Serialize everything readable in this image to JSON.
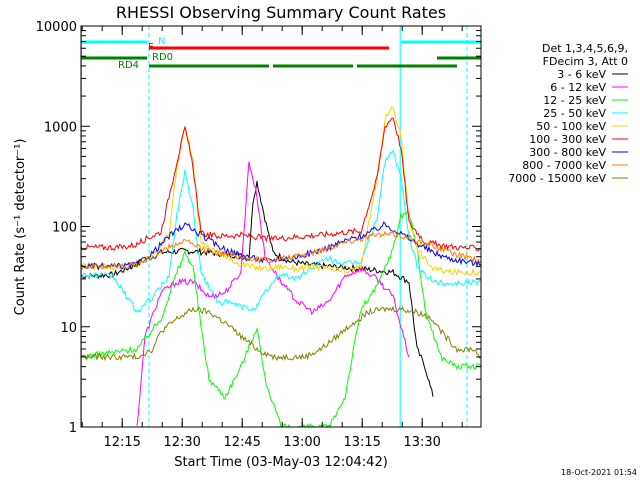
{
  "chart_data": {
    "type": "line",
    "title": "RHESSI Observing Summary Count Rates",
    "xlabel": "Start Time (03-May-03 12:04:42)",
    "ylabel": "Count Rate (s⁻¹ detector⁻¹)",
    "yscale": "log",
    "ylim": [
      1,
      10000
    ],
    "xlim": [
      0,
      100
    ],
    "x_ticks": [
      {
        "x": 10.3,
        "label": "12:15"
      },
      {
        "x": 25.3,
        "label": "12:30"
      },
      {
        "x": 40.3,
        "label": "12:45"
      },
      {
        "x": 55.3,
        "label": "13:00"
      },
      {
        "x": 70.3,
        "label": "13:15"
      },
      {
        "x": 85.3,
        "label": "13:30"
      }
    ],
    "y_ticks": [
      {
        "y": 1,
        "label": "1"
      },
      {
        "y": 10,
        "label": "10"
      },
      {
        "y": 100,
        "label": "100"
      },
      {
        "y": 1000,
        "label": "1000"
      },
      {
        "y": 10000,
        "label": "10000"
      }
    ],
    "legend_header": [
      "Det 1,3,4,5,6,9,",
      "FDecim 3, Att 0"
    ],
    "series": [
      {
        "name": "3 - 6 keV",
        "color": "#000000",
        "points": [
          [
            0,
            32
          ],
          [
            8,
            33
          ],
          [
            14,
            42
          ],
          [
            20,
            55
          ],
          [
            26,
            57
          ],
          [
            32,
            55
          ],
          [
            38,
            52
          ],
          [
            42,
            48
          ],
          [
            43,
            180
          ],
          [
            44,
            280
          ],
          [
            46,
            120
          ],
          [
            48,
            55
          ],
          [
            52,
            45
          ],
          [
            56,
            42
          ],
          [
            62,
            40
          ],
          [
            70,
            38
          ],
          [
            78,
            35
          ],
          [
            82,
            28
          ],
          [
            84,
            6
          ],
          [
            86,
            4
          ],
          [
            88,
            2
          ]
        ]
      },
      {
        "name": "6 - 12 keV",
        "color": "#ff00ff",
        "points": [
          [
            14,
            1
          ],
          [
            16,
            8
          ],
          [
            20,
            22
          ],
          [
            24,
            28
          ],
          [
            28,
            28
          ],
          [
            32,
            20
          ],
          [
            36,
            22
          ],
          [
            40,
            35
          ],
          [
            42,
            450
          ],
          [
            44,
            200
          ],
          [
            46,
            50
          ],
          [
            50,
            28
          ],
          [
            54,
            18
          ],
          [
            58,
            14
          ],
          [
            62,
            18
          ],
          [
            66,
            32
          ],
          [
            70,
            38
          ],
          [
            74,
            30
          ],
          [
            78,
            20
          ],
          [
            80,
            10
          ],
          [
            82,
            5
          ]
        ]
      },
      {
        "name": "12 - 25 keV",
        "color": "#00ff00",
        "points": [
          [
            0,
            5
          ],
          [
            14,
            6
          ],
          [
            20,
            12
          ],
          [
            24,
            35
          ],
          [
            26,
            55
          ],
          [
            28,
            40
          ],
          [
            30,
            10
          ],
          [
            32,
            3
          ],
          [
            36,
            2
          ],
          [
            40,
            4
          ],
          [
            44,
            10
          ],
          [
            46,
            3
          ],
          [
            50,
            1
          ],
          [
            54,
            1
          ],
          [
            58,
            1
          ],
          [
            62,
            1
          ],
          [
            66,
            2
          ],
          [
            70,
            15
          ],
          [
            74,
            25
          ],
          [
            78,
            60
          ],
          [
            80,
            130
          ],
          [
            82,
            140
          ],
          [
            84,
            60
          ],
          [
            86,
            15
          ],
          [
            90,
            5
          ],
          [
            94,
            4
          ],
          [
            100,
            4
          ]
        ]
      },
      {
        "name": "25 - 50 keV",
        "color": "#00ffff",
        "points": [
          [
            0,
            33
          ],
          [
            8,
            32
          ],
          [
            14,
            14
          ],
          [
            18,
            20
          ],
          [
            22,
            32
          ],
          [
            24,
            130
          ],
          [
            26,
            360
          ],
          [
            28,
            150
          ],
          [
            30,
            35
          ],
          [
            34,
            18
          ],
          [
            38,
            17
          ],
          [
            42,
            15
          ],
          [
            44,
            16
          ],
          [
            46,
            22
          ],
          [
            50,
            34
          ],
          [
            54,
            30
          ],
          [
            58,
            40
          ],
          [
            62,
            48
          ],
          [
            66,
            42
          ],
          [
            70,
            45
          ],
          [
            74,
            120
          ],
          [
            76,
            450
          ],
          [
            78,
            570
          ],
          [
            80,
            300
          ],
          [
            82,
            80
          ],
          [
            84,
            40
          ],
          [
            88,
            28
          ],
          [
            92,
            27
          ],
          [
            100,
            28
          ]
        ]
      },
      {
        "name": "50 - 100 keV",
        "color": "#ffd000",
        "points": [
          [
            0,
            40
          ],
          [
            8,
            40
          ],
          [
            14,
            42
          ],
          [
            18,
            52
          ],
          [
            22,
            85
          ],
          [
            24,
            400
          ],
          [
            26,
            980
          ],
          [
            28,
            450
          ],
          [
            30,
            70
          ],
          [
            34,
            55
          ],
          [
            38,
            45
          ],
          [
            42,
            40
          ],
          [
            46,
            38
          ],
          [
            50,
            40
          ],
          [
            54,
            38
          ],
          [
            58,
            40
          ],
          [
            62,
            38
          ],
          [
            66,
            35
          ],
          [
            70,
            40
          ],
          [
            74,
            300
          ],
          [
            76,
            1200
          ],
          [
            78,
            1550
          ],
          [
            80,
            800
          ],
          [
            82,
            120
          ],
          [
            84,
            60
          ],
          [
            88,
            38
          ],
          [
            92,
            35
          ],
          [
            100,
            35
          ]
        ]
      },
      {
        "name": "100 - 300 keV",
        "color": "#ff0000",
        "points": [
          [
            0,
            62
          ],
          [
            10,
            62
          ],
          [
            14,
            66
          ],
          [
            16,
            75
          ],
          [
            20,
            88
          ],
          [
            24,
            450
          ],
          [
            26,
            950
          ],
          [
            28,
            400
          ],
          [
            30,
            85
          ],
          [
            34,
            80
          ],
          [
            40,
            82
          ],
          [
            44,
            78
          ],
          [
            48,
            75
          ],
          [
            52,
            78
          ],
          [
            56,
            80
          ],
          [
            62,
            84
          ],
          [
            66,
            88
          ],
          [
            70,
            90
          ],
          [
            74,
            300
          ],
          [
            76,
            1000
          ],
          [
            78,
            1250
          ],
          [
            80,
            600
          ],
          [
            82,
            110
          ],
          [
            86,
            70
          ],
          [
            90,
            65
          ],
          [
            94,
            62
          ],
          [
            100,
            60
          ]
        ]
      },
      {
        "name": "300 - 800 keV",
        "color": "#0000ff",
        "points": [
          [
            0,
            40
          ],
          [
            10,
            40
          ],
          [
            14,
            42
          ],
          [
            18,
            55
          ],
          [
            22,
            80
          ],
          [
            26,
            105
          ],
          [
            30,
            82
          ],
          [
            34,
            65
          ],
          [
            38,
            55
          ],
          [
            42,
            50
          ],
          [
            46,
            45
          ],
          [
            50,
            48
          ],
          [
            54,
            50
          ],
          [
            58,
            55
          ],
          [
            62,
            62
          ],
          [
            66,
            72
          ],
          [
            70,
            80
          ],
          [
            74,
            95
          ],
          [
            76,
            105
          ],
          [
            80,
            85
          ],
          [
            84,
            68
          ],
          [
            88,
            55
          ],
          [
            92,
            48
          ],
          [
            100,
            42
          ]
        ]
      },
      {
        "name": "800 - 7000 keV",
        "color": "#ff8000",
        "points": [
          [
            0,
            40
          ],
          [
            10,
            40
          ],
          [
            14,
            42
          ],
          [
            18,
            50
          ],
          [
            22,
            62
          ],
          [
            26,
            72
          ],
          [
            30,
            60
          ],
          [
            34,
            55
          ],
          [
            38,
            52
          ],
          [
            42,
            48
          ],
          [
            46,
            46
          ],
          [
            50,
            48
          ],
          [
            54,
            50
          ],
          [
            58,
            55
          ],
          [
            62,
            62
          ],
          [
            66,
            70
          ],
          [
            70,
            76
          ],
          [
            74,
            82
          ],
          [
            78,
            84
          ],
          [
            82,
            78
          ],
          [
            86,
            68
          ],
          [
            90,
            60
          ],
          [
            94,
            52
          ],
          [
            100,
            45
          ]
        ]
      },
      {
        "name": "7000 - 15000 keV",
        "color": "#808000",
        "points": [
          [
            0,
            5
          ],
          [
            14,
            5
          ],
          [
            18,
            6
          ],
          [
            20,
            9
          ],
          [
            24,
            12
          ],
          [
            28,
            15
          ],
          [
            32,
            14
          ],
          [
            36,
            11
          ],
          [
            40,
            8
          ],
          [
            44,
            6
          ],
          [
            48,
            5
          ],
          [
            52,
            5
          ],
          [
            56,
            5
          ],
          [
            60,
            6
          ],
          [
            64,
            8
          ],
          [
            68,
            11
          ],
          [
            72,
            14
          ],
          [
            76,
            15
          ],
          [
            80,
            15
          ],
          [
            84,
            14
          ],
          [
            88,
            12
          ],
          [
            90,
            9
          ],
          [
            94,
            6
          ],
          [
            98,
            6
          ],
          [
            100,
            5
          ]
        ]
      }
    ],
    "observing_flags": [
      {
        "label": "N",
        "color": "#00ffff",
        "segments": [
          [
            0,
            16.5
          ],
          [
            80,
            100
          ]
        ]
      },
      {
        "label": "F",
        "color": "#ff0000",
        "segments": [
          [
            17,
            77
          ]
        ]
      },
      {
        "label": "RD0",
        "color": "#008000",
        "segments": [
          [
            0,
            16.5
          ],
          [
            89,
            95
          ],
          [
            95,
            100
          ]
        ]
      },
      {
        "label": "RD4",
        "color": "#008000",
        "segments": [
          [
            17,
            47
          ],
          [
            48,
            68
          ],
          [
            69,
            94
          ]
        ]
      }
    ],
    "vertical_markers": [
      {
        "x": 0.1,
        "color": "#00ffff",
        "style": "solid"
      },
      {
        "x": 17,
        "color": "#00ffff",
        "style": "dashed"
      },
      {
        "x": 79.8,
        "color": "#00ffff",
        "style": "solid"
      },
      {
        "x": 96.5,
        "color": "#00ffff",
        "style": "dashed"
      }
    ]
  },
  "timestamp": "18-Oct-2021 01:54"
}
